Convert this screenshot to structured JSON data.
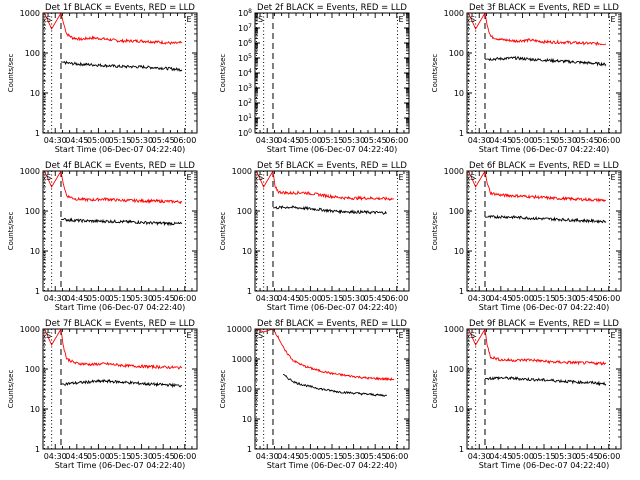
{
  "chart_data": [
    {
      "type": "line",
      "title": "Det 1f BLACK = Events, RED = LLD",
      "ylabel": "Counts/sec",
      "xlabel": "Start Time (06-Dec-07 04:22:40)",
      "yscale": "log",
      "ylim": [
        1,
        1000
      ],
      "ytick_labels": [
        "1",
        "10",
        "100",
        "1000"
      ],
      "xlim_min_after_04_00": [
        21.5,
        128.5
      ],
      "xtick_labels": [
        "04:30",
        "04:45",
        "05:00",
        "05:15",
        "05:30",
        "05:45",
        "06:00"
      ],
      "markers": {
        "S": "S",
        "E": "E"
      },
      "series": [
        {
          "color": "#ff0000",
          "values_by_time": [
            [
              22.5,
              1000
            ],
            [
              27.5,
              400
            ],
            [
              34,
              1000
            ],
            [
              35.5,
              600
            ],
            [
              38,
              300
            ],
            [
              42,
              240
            ],
            [
              48,
              220
            ],
            [
              55,
              240
            ],
            [
              62,
              230
            ],
            [
              75,
              200
            ],
            [
              90,
              200
            ],
            [
              100,
              190
            ],
            [
              112,
              175
            ],
            [
              118,
              180
            ]
          ]
        },
        {
          "color": "#000000",
          "values_by_time": [
            [
              34,
              60
            ],
            [
              40,
              55
            ],
            [
              50,
              52
            ],
            [
              60,
              50
            ],
            [
              75,
              46
            ],
            [
              90,
              45
            ],
            [
              105,
              42
            ],
            [
              118,
              38
            ]
          ]
        }
      ]
    },
    {
      "type": "line",
      "title": "Det 2f BLACK = Events, RED = LLD",
      "ylabel": "Counts/sec",
      "xlabel": "Start Time (06-Dec-07 04:22:40)",
      "yscale": "log",
      "ylim": [
        1,
        100000000
      ],
      "ytick_labels": [
        "10^0",
        "10^1",
        "10^2",
        "10^3",
        "10^4",
        "10^5",
        "10^6",
        "10^7",
        "10^8"
      ],
      "xlim_min_after_04_00": [
        21.5,
        128.5
      ],
      "xtick_labels": [
        "04:30",
        "04:45",
        "05:00",
        "05:15",
        "05:30",
        "05:45",
        "06:00"
      ],
      "markers": {
        "S": "S",
        "E": "E"
      },
      "series": []
    },
    {
      "type": "line",
      "title": "Det 3f BLACK = Events, RED = LLD",
      "ylabel": "Counts/sec",
      "xlabel": "Start Time (06-Dec-07 04:22:40)",
      "yscale": "log",
      "ylim": [
        1,
        1000
      ],
      "ytick_labels": [
        "1",
        "10",
        "100",
        "1000"
      ],
      "xlim_min_after_04_00": [
        21.5,
        128.5
      ],
      "xtick_labels": [
        "04:30",
        "04:45",
        "05:00",
        "05:15",
        "05:30",
        "05:45",
        "06:00"
      ],
      "markers": {
        "S": "S",
        "E": "E"
      },
      "series": [
        {
          "color": "#ff0000",
          "values_by_time": [
            [
              22.5,
              1000
            ],
            [
              27.5,
              400
            ],
            [
              34,
              1000
            ],
            [
              35.5,
              500
            ],
            [
              38,
              260
            ],
            [
              44,
              220
            ],
            [
              55,
              200
            ],
            [
              65,
              210
            ],
            [
              75,
              190
            ],
            [
              90,
              185
            ],
            [
              105,
              175
            ],
            [
              118,
              170
            ]
          ]
        },
        {
          "color": "#000000",
          "values_by_time": [
            [
              34,
              70
            ],
            [
              45,
              72
            ],
            [
              55,
              75
            ],
            [
              65,
              70
            ],
            [
              80,
              65
            ],
            [
              95,
              60
            ],
            [
              110,
              55
            ],
            [
              118,
              52
            ]
          ]
        }
      ]
    },
    {
      "type": "line",
      "title": "Det 4f BLACK = Events, RED = LLD",
      "ylabel": "Counts/sec",
      "xlabel": "Start Time (06-Dec-07 04:22:40)",
      "yscale": "log",
      "ylim": [
        1,
        1000
      ],
      "ytick_labels": [
        "1",
        "10",
        "100",
        "1000"
      ],
      "xlim_min_after_04_00": [
        21.5,
        128.5
      ],
      "xtick_labels": [
        "04:30",
        "04:45",
        "05:00",
        "05:15",
        "05:30",
        "05:45",
        "06:00"
      ],
      "markers": {
        "S": "S",
        "E": "E"
      },
      "series": [
        {
          "color": "#ff0000",
          "values_by_time": [
            [
              22.5,
              1000
            ],
            [
              27.5,
              400
            ],
            [
              34,
              1000
            ],
            [
              35.5,
              500
            ],
            [
              38,
              240
            ],
            [
              44,
              200
            ],
            [
              55,
              190
            ],
            [
              65,
              200
            ],
            [
              75,
              185
            ],
            [
              90,
              180
            ],
            [
              105,
              175
            ],
            [
              118,
              170
            ]
          ]
        },
        {
          "color": "#000000",
          "values_by_time": [
            [
              34,
              62
            ],
            [
              45,
              58
            ],
            [
              55,
              56
            ],
            [
              70,
              55
            ],
            [
              85,
              53
            ],
            [
              100,
              50
            ],
            [
              118,
              48
            ]
          ]
        }
      ]
    },
    {
      "type": "line",
      "title": "Det 5f BLACK = Events, RED = LLD",
      "ylabel": "Counts/sec",
      "xlabel": "Start Time (06-Dec-07 04:22:40)",
      "yscale": "log",
      "ylim": [
        1,
        1000
      ],
      "ytick_labels": [
        "1",
        "10",
        "100",
        "1000"
      ],
      "xlim_min_after_04_00": [
        21.5,
        128.5
      ],
      "xtick_labels": [
        "04:30",
        "04:45",
        "05:00",
        "05:15",
        "05:30",
        "05:45",
        "06:00"
      ],
      "markers": {
        "S": "S",
        "E": "E"
      },
      "series": [
        {
          "color": "#ff0000",
          "values_by_time": [
            [
              22.5,
              1000
            ],
            [
              27.5,
              400
            ],
            [
              34,
              1000
            ],
            [
              35.5,
              400
            ],
            [
              38,
              300
            ],
            [
              45,
              280
            ],
            [
              55,
              290
            ],
            [
              65,
              260
            ],
            [
              75,
              230
            ],
            [
              85,
              210
            ],
            [
              100,
              210
            ],
            [
              118,
              200
            ]
          ]
        },
        {
          "color": "#000000",
          "values_by_time": [
            [
              34,
              120
            ],
            [
              45,
              125
            ],
            [
              55,
              118
            ],
            [
              65,
              110
            ],
            [
              75,
              100
            ],
            [
              90,
              95
            ],
            [
              105,
              92
            ],
            [
              113,
              90
            ]
          ]
        }
      ]
    },
    {
      "type": "line",
      "title": "Det 6f BLACK = Events, RED = LLD",
      "ylabel": "Counts/sec",
      "xlabel": "Start Time (06-Dec-07 04:22:40)",
      "yscale": "log",
      "ylim": [
        1,
        1000
      ],
      "ytick_labels": [
        "1",
        "10",
        "100",
        "1000"
      ],
      "xlim_min_after_04_00": [
        21.5,
        128.5
      ],
      "xtick_labels": [
        "04:30",
        "04:45",
        "05:00",
        "05:15",
        "05:30",
        "05:45",
        "06:00"
      ],
      "markers": {
        "S": "S",
        "E": "E"
      },
      "series": [
        {
          "color": "#ff0000",
          "values_by_time": [
            [
              22.5,
              1000
            ],
            [
              27.5,
              400
            ],
            [
              34,
              1000
            ],
            [
              35.5,
              500
            ],
            [
              38,
              280
            ],
            [
              45,
              250
            ],
            [
              55,
              240
            ],
            [
              65,
              230
            ],
            [
              80,
              210
            ],
            [
              95,
              200
            ],
            [
              110,
              190
            ],
            [
              118,
              185
            ]
          ]
        },
        {
          "color": "#000000",
          "values_by_time": [
            [
              34,
              70
            ],
            [
              45,
              72
            ],
            [
              55,
              70
            ],
            [
              70,
              65
            ],
            [
              85,
              62
            ],
            [
              100,
              58
            ],
            [
              118,
              55
            ]
          ]
        }
      ]
    },
    {
      "type": "line",
      "title": "Det 7f BLACK = Events, RED = LLD",
      "ylabel": "Counts/sec",
      "xlabel": "Start Time (06-Dec-07 04:22:40)",
      "yscale": "log",
      "ylim": [
        1,
        1000
      ],
      "ytick_labels": [
        "1",
        "10",
        "100",
        "1000"
      ],
      "xlim_min_after_04_00": [
        21.5,
        128.5
      ],
      "xtick_labels": [
        "04:30",
        "04:45",
        "05:00",
        "05:15",
        "05:30",
        "05:45",
        "06:00"
      ],
      "markers": {
        "S": "S",
        "E": "E"
      },
      "series": [
        {
          "color": "#ff0000",
          "values_by_time": [
            [
              22.5,
              1000
            ],
            [
              27.5,
              400
            ],
            [
              34,
              1000
            ],
            [
              35.5,
              400
            ],
            [
              38,
              180
            ],
            [
              44,
              140
            ],
            [
              55,
              130
            ],
            [
              65,
              135
            ],
            [
              80,
              120
            ],
            [
              95,
              115
            ],
            [
              110,
              110
            ],
            [
              118,
              108
            ]
          ]
        },
        {
          "color": "#000000",
          "values_by_time": [
            [
              34,
              42
            ],
            [
              45,
              45
            ],
            [
              55,
              48
            ],
            [
              65,
              50
            ],
            [
              80,
              46
            ],
            [
              95,
              42
            ],
            [
              110,
              40
            ],
            [
              118,
              38
            ]
          ]
        }
      ]
    },
    {
      "type": "line",
      "title": "Det 8f BLACK = Events, RED = LLD",
      "ylabel": "Counts/sec",
      "xlabel": "Start Time (06-Dec-07 04:22:40)",
      "yscale": "log",
      "ylim": [
        1,
        10000
      ],
      "ytick_labels": [
        "1",
        "10",
        "100",
        "1000",
        "10000"
      ],
      "xlim_min_after_04_00": [
        21.5,
        128.5
      ],
      "xtick_labels": [
        "04:30",
        "04:45",
        "05:00",
        "05:15",
        "05:30",
        "05:45",
        "06:00"
      ],
      "markers": {
        "S": "S",
        "E": "E"
      },
      "series": [
        {
          "color": "#ff0000",
          "values_by_time": [
            [
              22.5,
              10000
            ],
            [
              27.5,
              8000
            ],
            [
              34,
              10000
            ],
            [
              38,
              5000
            ],
            [
              42,
              2000
            ],
            [
              48,
              900
            ],
            [
              55,
              600
            ],
            [
              65,
              420
            ],
            [
              75,
              330
            ],
            [
              85,
              280
            ],
            [
              100,
              230
            ],
            [
              118,
              210
            ]
          ]
        },
        {
          "color": "#000000",
          "values_by_time": [
            [
              41,
              300
            ],
            [
              45,
              220
            ],
            [
              50,
              160
            ],
            [
              60,
              120
            ],
            [
              70,
              95
            ],
            [
              80,
              80
            ],
            [
              95,
              70
            ],
            [
              113,
              60
            ]
          ]
        }
      ]
    },
    {
      "type": "line",
      "title": "Det 9f BLACK = Events, RED = LLD",
      "ylabel": "Counts/sec",
      "xlabel": "Start Time (06-Dec-07 04:22:40)",
      "yscale": "log",
      "ylim": [
        1,
        1000
      ],
      "ytick_labels": [
        "1",
        "10",
        "100",
        "1000"
      ],
      "xlim_min_after_04_00": [
        21.5,
        128.5
      ],
      "xtick_labels": [
        "04:30",
        "04:45",
        "05:00",
        "05:15",
        "05:30",
        "05:45",
        "06:00"
      ],
      "markers": {
        "S": "S",
        "E": "E"
      },
      "series": [
        {
          "color": "#ff0000",
          "values_by_time": [
            [
              22.5,
              1000
            ],
            [
              27.5,
              400
            ],
            [
              34,
              1000
            ],
            [
              35.5,
              400
            ],
            [
              38,
              200
            ],
            [
              45,
              170
            ],
            [
              55,
              165
            ],
            [
              65,
              170
            ],
            [
              80,
              150
            ],
            [
              95,
              145
            ],
            [
              110,
              140
            ],
            [
              118,
              138
            ]
          ]
        },
        {
          "color": "#000000",
          "values_by_time": [
            [
              34,
              58
            ],
            [
              45,
              60
            ],
            [
              55,
              58
            ],
            [
              65,
              55
            ],
            [
              80,
              52
            ],
            [
              95,
              48
            ],
            [
              110,
              45
            ],
            [
              118,
              42
            ]
          ]
        }
      ]
    }
  ]
}
